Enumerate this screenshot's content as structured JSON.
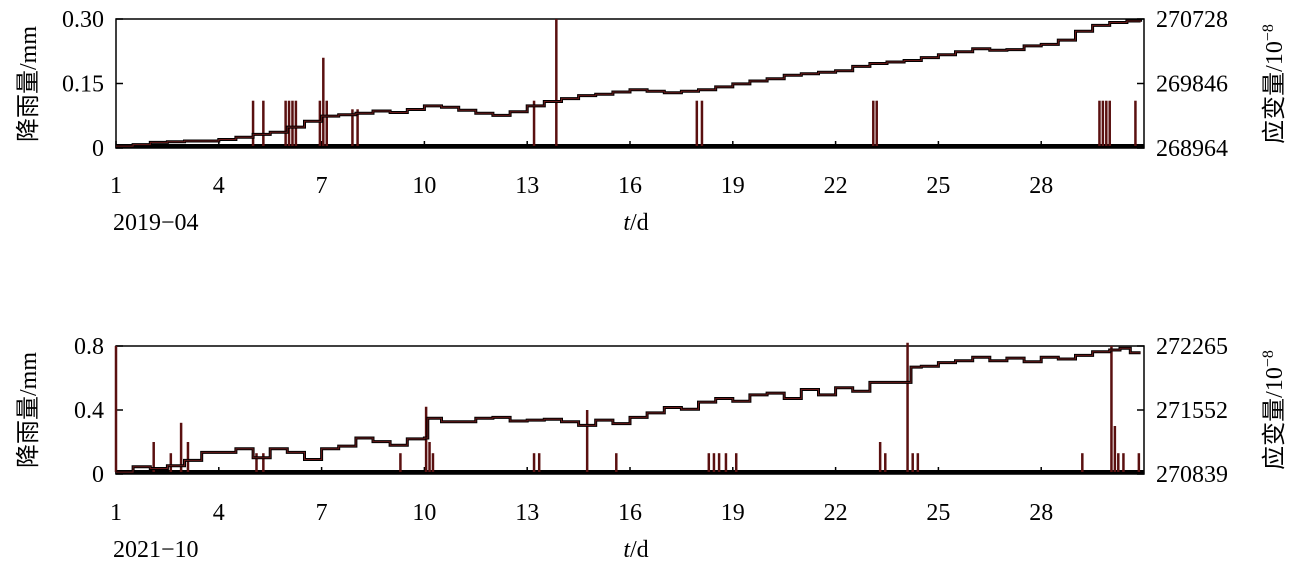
{
  "chart_data": [
    {
      "type": "line",
      "period_label": "2019−04",
      "xlabel_italic": "t",
      "xlabel_unit": "/d",
      "ylabel_left": "降雨量/mm",
      "ylabel_right": "应变量/10",
      "ylabel_right_exp": "−8",
      "xlim": [
        1,
        31
      ],
      "x_ticks": [
        1,
        4,
        7,
        10,
        13,
        16,
        19,
        22,
        25,
        28
      ],
      "y_left_ticks": [
        "0",
        "0.15",
        "0.30"
      ],
      "y_left_lim": [
        0,
        0.3
      ],
      "y_right_ticks": [
        "268964",
        "269846",
        "270728"
      ],
      "y_right_lim": [
        268964,
        270728
      ],
      "series": [
        {
          "axis": "left",
          "kind": "rain-bars",
          "x": [
            5.0,
            5.3,
            5.95,
            6.05,
            6.15,
            6.25,
            6.95,
            7.05,
            7.15,
            7.9,
            8.05,
            13.2,
            13.85,
            17.95,
            18.1,
            23.1,
            23.2,
            29.7,
            29.8,
            29.9,
            30.0,
            30.75
          ],
          "values": [
            0.11,
            0.11,
            0.11,
            0.11,
            0.11,
            0.11,
            0.11,
            0.21,
            0.11,
            0.09,
            0.09,
            0.11,
            0.3,
            0.11,
            0.11,
            0.11,
            0.11,
            0.11,
            0.11,
            0.11,
            0.11,
            0.11
          ]
        },
        {
          "axis": "right",
          "kind": "strain-line",
          "x": [
            1,
            1.5,
            2,
            2.5,
            3,
            3.5,
            4,
            4.5,
            5,
            5.5,
            6,
            6.5,
            7,
            7.5,
            8,
            8.5,
            9,
            9.5,
            10,
            10.5,
            11,
            11.5,
            12,
            12.5,
            13,
            13.5,
            14,
            14.5,
            15,
            15.5,
            16,
            16.5,
            17,
            17.5,
            18,
            18.5,
            19,
            19.5,
            20,
            20.5,
            21,
            21.5,
            22,
            22.5,
            23,
            23.5,
            24,
            24.5,
            25,
            25.5,
            26,
            26.5,
            27,
            27.5,
            28,
            28.5,
            29,
            29.5,
            30,
            30.5,
            30.9
          ],
          "values": [
            268990,
            269010,
            269040,
            269050,
            269060,
            269060,
            269080,
            269110,
            269150,
            269180,
            269250,
            269330,
            269400,
            269420,
            269440,
            269470,
            269450,
            269490,
            269540,
            269520,
            269480,
            269440,
            269410,
            269460,
            269540,
            269600,
            269640,
            269680,
            269700,
            269730,
            269760,
            269740,
            269720,
            269740,
            269760,
            269800,
            269840,
            269880,
            269910,
            269960,
            269980,
            270000,
            270020,
            270080,
            270120,
            270140,
            270160,
            270200,
            270240,
            270280,
            270320,
            270300,
            270310,
            270360,
            270380,
            270440,
            270560,
            270640,
            270680,
            270700,
            270690
          ]
        }
      ]
    },
    {
      "type": "line",
      "period_label": "2021−10",
      "xlabel_italic": "t",
      "xlabel_unit": "/d",
      "ylabel_left": "降雨量/mm",
      "ylabel_right": "应变量/10",
      "ylabel_right_exp": "−8",
      "xlim": [
        1,
        31
      ],
      "x_ticks": [
        1,
        4,
        7,
        10,
        13,
        16,
        19,
        22,
        25,
        28
      ],
      "y_left_ticks": [
        "0",
        "0.4",
        "0.8"
      ],
      "y_left_lim": [
        0,
        0.8
      ],
      "y_right_ticks": [
        "270839",
        "271552",
        "272265"
      ],
      "y_right_lim": [
        270839,
        272265
      ],
      "series": [
        {
          "axis": "left",
          "kind": "rain-bars",
          "x": [
            1.0,
            2.1,
            2.6,
            2.9,
            3.1,
            5.1,
            5.3,
            9.3,
            10.05,
            10.15,
            10.25,
            13.2,
            13.35,
            14.75,
            15.6,
            18.3,
            18.45,
            18.6,
            18.8,
            19.1,
            23.3,
            23.45,
            24.1,
            24.25,
            24.4,
            29.2,
            30.05,
            30.15,
            30.25,
            30.4,
            30.85
          ],
          "values": [
            0.8,
            0.2,
            0.13,
            0.32,
            0.2,
            0.13,
            0.13,
            0.13,
            0.42,
            0.2,
            0.13,
            0.13,
            0.13,
            0.4,
            0.13,
            0.13,
            0.13,
            0.13,
            0.13,
            0.13,
            0.2,
            0.13,
            0.82,
            0.13,
            0.13,
            0.13,
            0.8,
            0.3,
            0.13,
            0.13,
            0.13
          ]
        },
        {
          "axis": "right",
          "kind": "strain-line",
          "x": [
            1,
            1.5,
            2,
            2.5,
            3,
            3.5,
            4,
            4.5,
            5,
            5.5,
            6,
            6.5,
            7,
            7.5,
            8,
            8.5,
            9,
            9.5,
            10,
            10.1,
            10.5,
            11,
            11.5,
            12,
            12.5,
            13,
            13.5,
            14,
            14.5,
            15,
            15.5,
            16,
            16.5,
            17,
            17.5,
            18,
            18.5,
            19,
            19.5,
            20,
            20.5,
            21,
            21.5,
            22,
            22.5,
            23,
            23.5,
            24,
            24.2,
            24.5,
            25,
            25.5,
            26,
            26.5,
            27,
            27.5,
            28,
            28.5,
            29,
            29.5,
            30,
            30.3,
            30.6,
            30.9
          ],
          "values": [
            270860,
            270920,
            270900,
            270930,
            270990,
            271080,
            271080,
            271120,
            271020,
            271120,
            271080,
            271000,
            271120,
            271150,
            271240,
            271200,
            271160,
            271230,
            271240,
            271460,
            271420,
            271420,
            271460,
            271470,
            271430,
            271440,
            271450,
            271420,
            271380,
            271440,
            271400,
            271470,
            271520,
            271580,
            271560,
            271640,
            271680,
            271650,
            271720,
            271740,
            271680,
            271780,
            271720,
            271800,
            271760,
            271860,
            271860,
            271860,
            272030,
            272040,
            272080,
            272100,
            272140,
            272100,
            272130,
            272090,
            272140,
            272120,
            272160,
            272200,
            272220,
            272240,
            272190,
            272190
          ]
        }
      ]
    }
  ]
}
